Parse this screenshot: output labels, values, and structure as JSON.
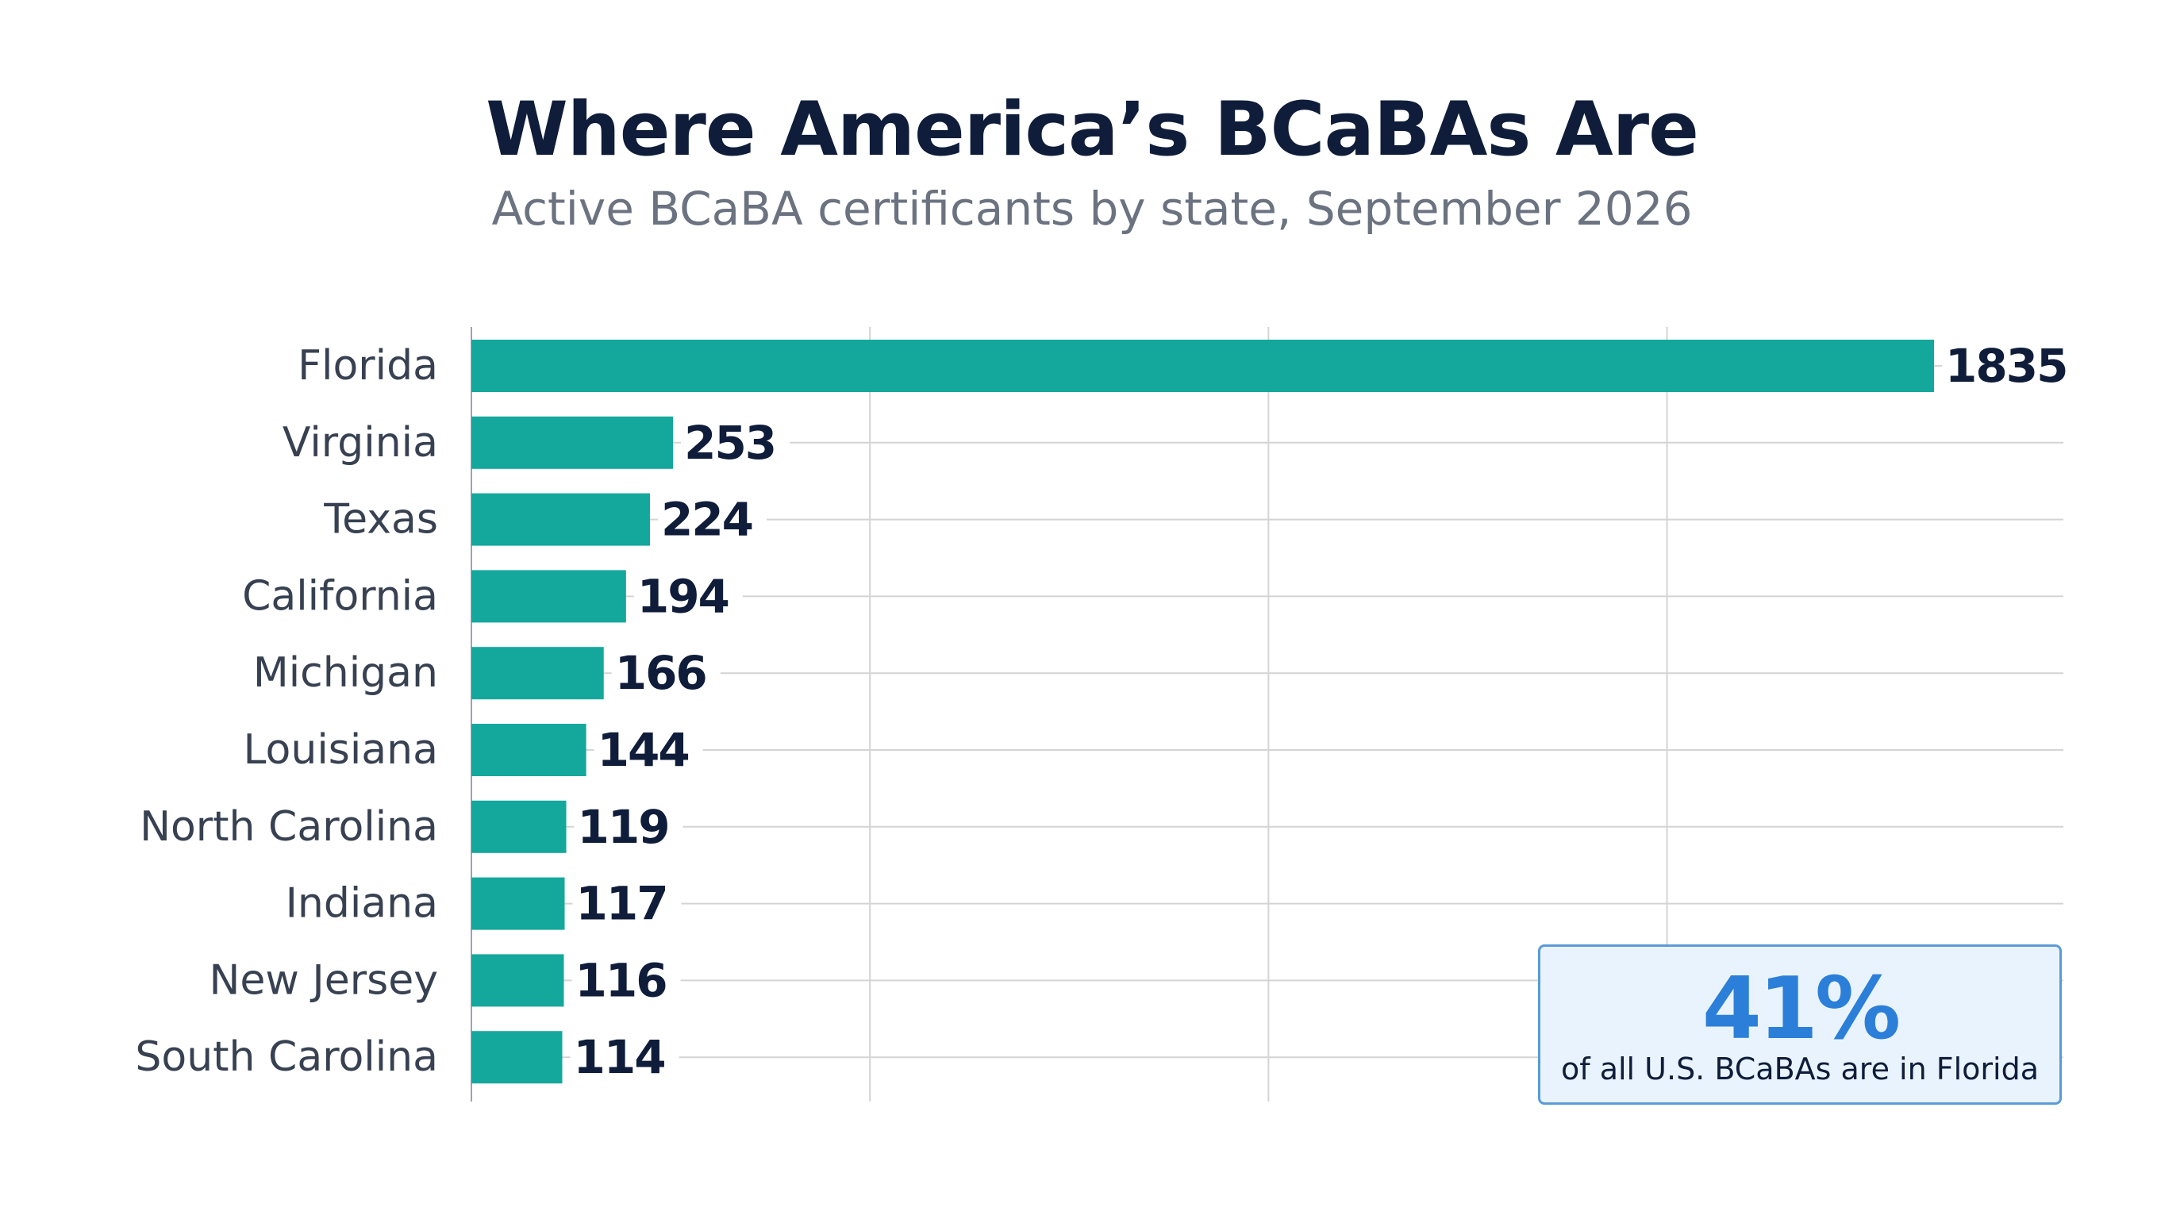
{
  "chart_data": {
    "type": "bar",
    "orientation": "horizontal",
    "title": "Where America’s BCaBAs Are",
    "subtitle": "Active BCaBA certificants by state, September 2026",
    "categories": [
      "Florida",
      "Virginia",
      "Texas",
      "California",
      "Michigan",
      "Louisiana",
      "North Carolina",
      "Indiana",
      "New Jersey",
      "South Carolina"
    ],
    "values": [
      1835,
      253,
      224,
      194,
      166,
      144,
      119,
      117,
      116,
      114
    ],
    "xlim": [
      0,
      2000
    ],
    "grid": true,
    "bar_color": "#14a89c",
    "label_color": "#0f1d3a",
    "grid_color": "#d4d4d4"
  },
  "callout": {
    "value": "41%",
    "text": "of all U.S. BCaBAs are in Florida"
  }
}
